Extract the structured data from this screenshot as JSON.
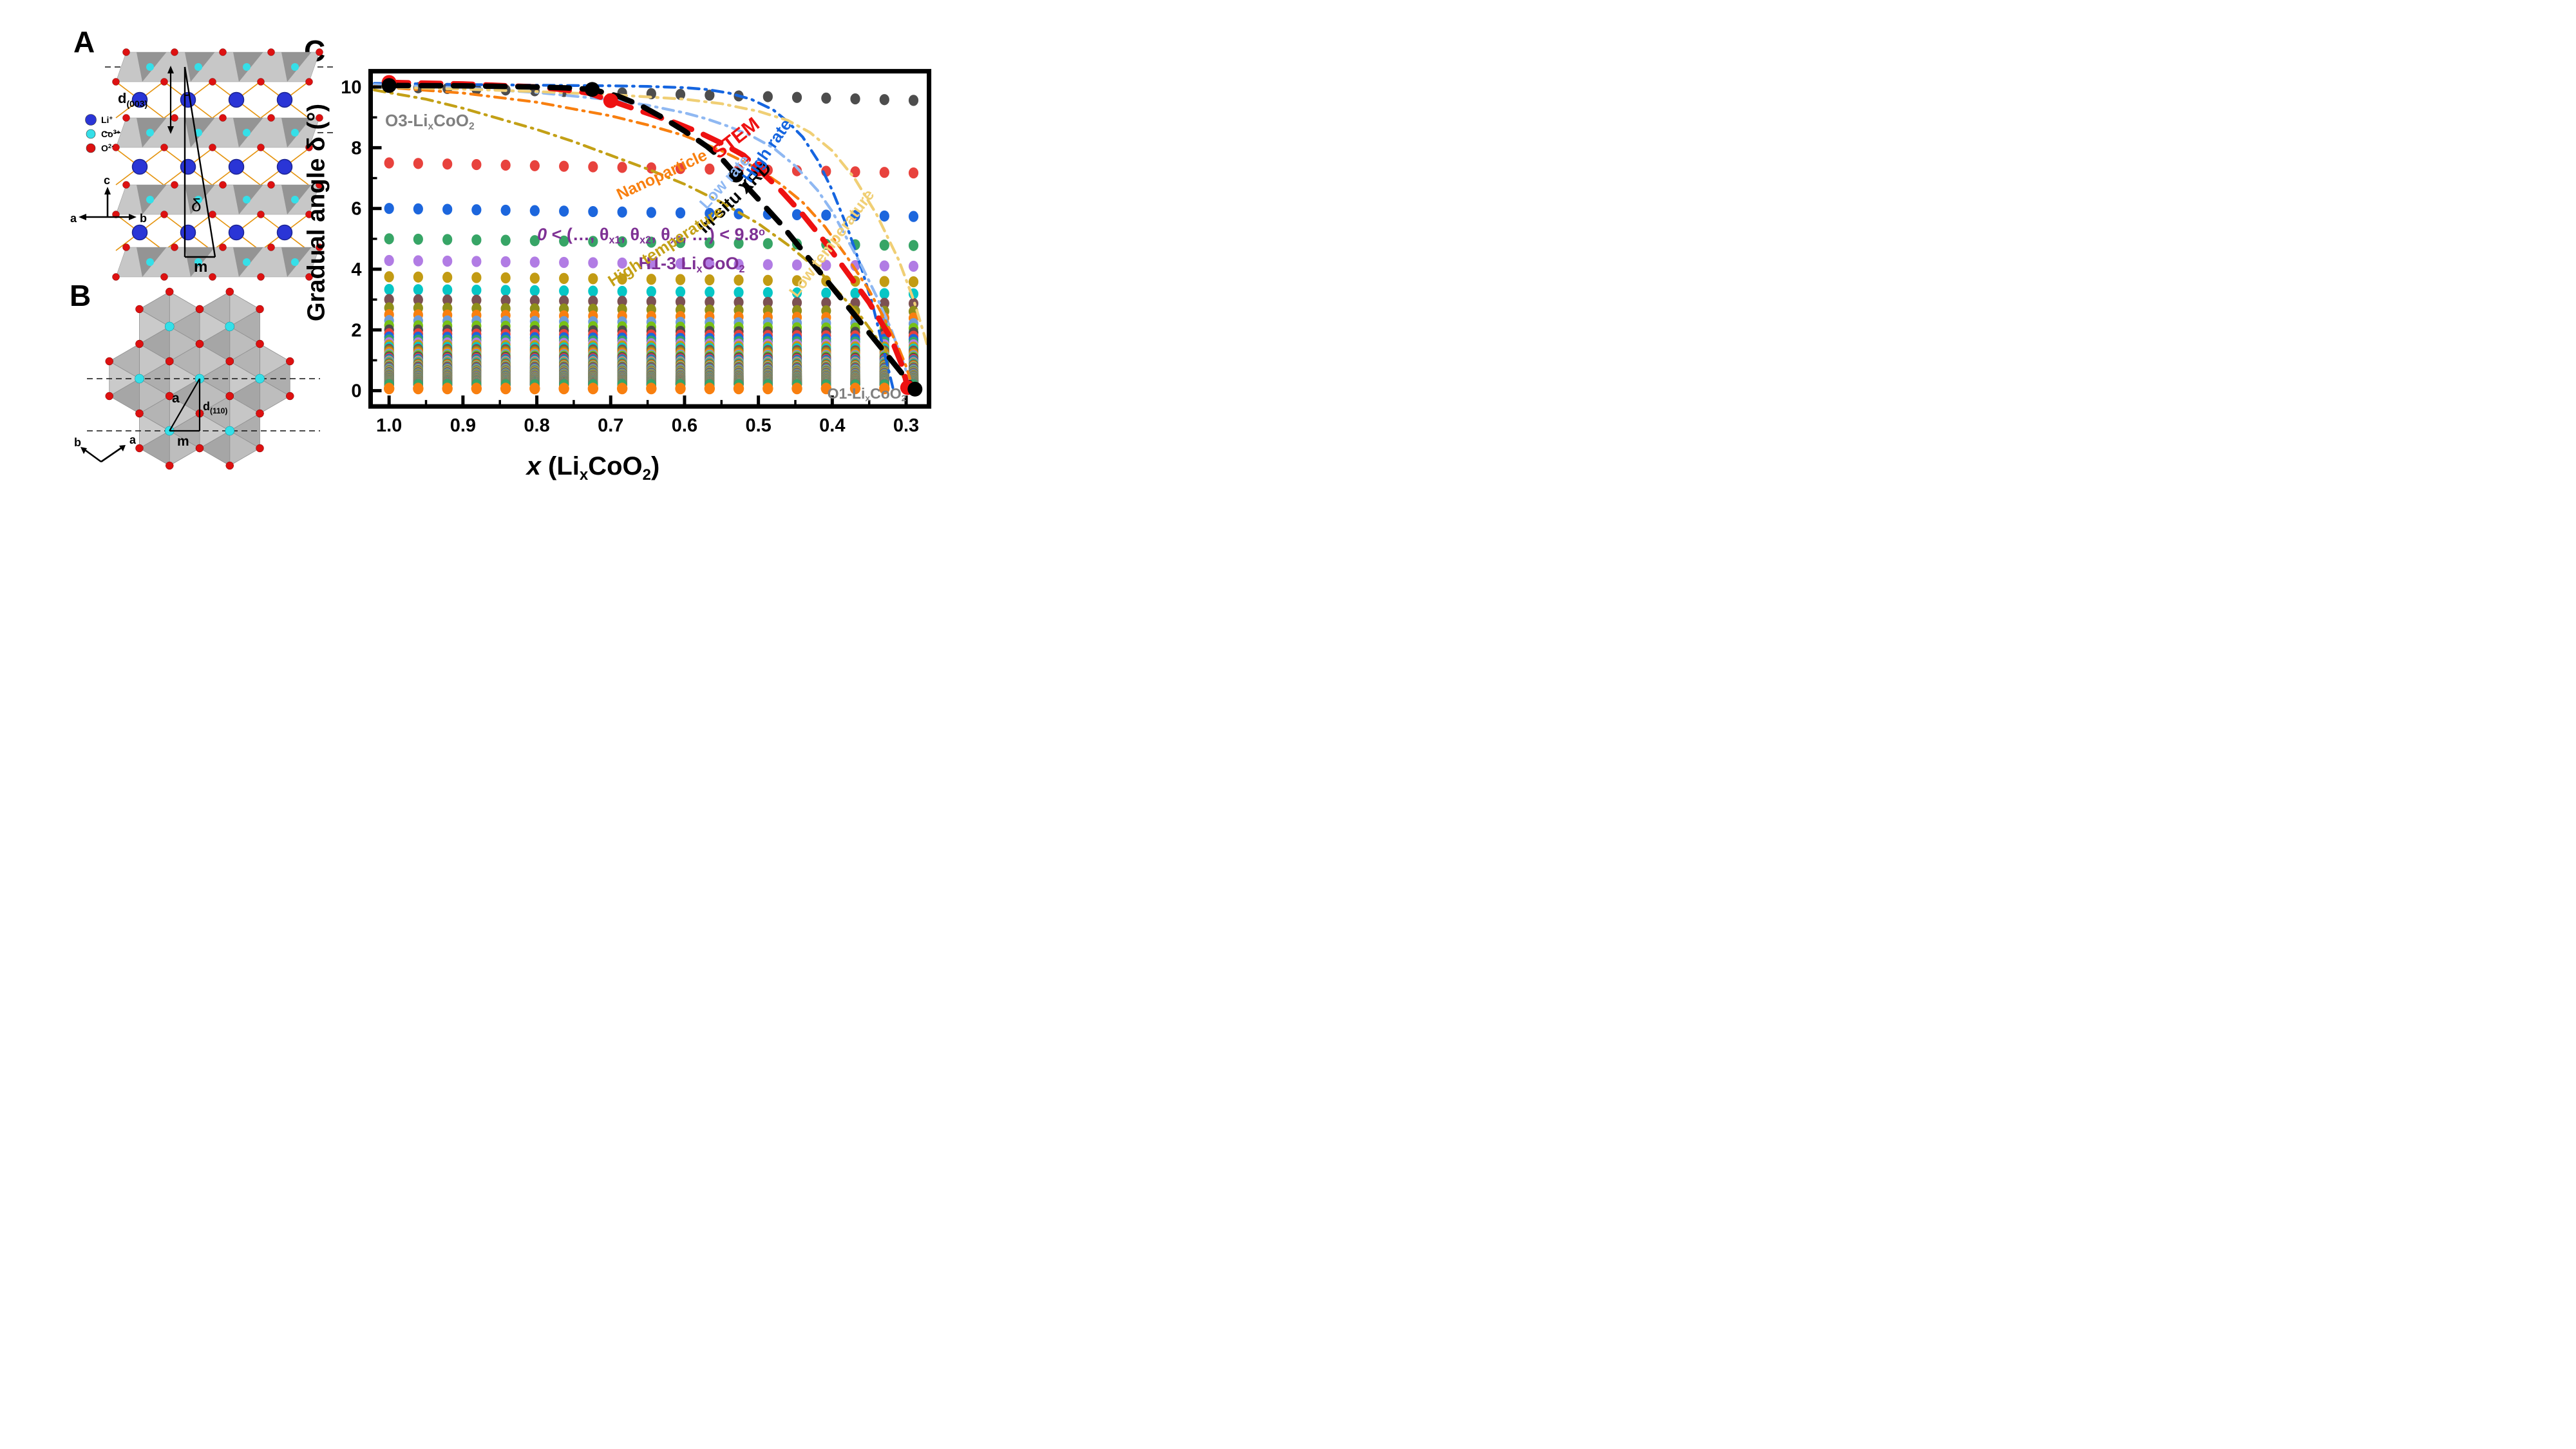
{
  "figure": {
    "panel_a_label": "A",
    "panel_b_label": "B",
    "panel_c_label": "C"
  },
  "panel_a": {
    "legend": [
      {
        "base": "Li",
        "sup": "+",
        "color": "#2a35d6"
      },
      {
        "base": "Co",
        "sup": "3+",
        "color": "#35dfe8"
      },
      {
        "base": "O",
        "sup": "2-",
        "color": "#dd1111"
      }
    ],
    "labels": {
      "d_base": "d",
      "d_sub": "(003)",
      "delta": "δ",
      "m": "m",
      "axis_c": "c",
      "axis_a": "a",
      "axis_b": "b"
    },
    "colors": {
      "li": "#2a35d6",
      "li_edge": "#1b2390",
      "co": "#35dfe8",
      "o": "#dd1111",
      "o_edge": "#7a0a0a",
      "bond": "#e5940f",
      "slab_light": "#c7c7c7",
      "slab_dark": "#8f8f8f",
      "slab_edge": "#9e9e9e"
    }
  },
  "panel_b": {
    "labels": {
      "a_tri": "a",
      "d_base": "d",
      "d_sub": "(110)",
      "m": "m",
      "axis_b": "b",
      "axis_a": "a"
    },
    "colors": {
      "co": "#35dfe8",
      "o": "#dd1111",
      "hex_fills": [
        "#c6c6c6",
        "#aeaeae",
        "#bdbdbd",
        "#a6a6a6",
        "#cacaca",
        "#b4b4b4"
      ],
      "hex_edge": "#909090"
    }
  },
  "chart_data": {
    "type": "scatter",
    "title": "",
    "ylabel": "Gradual angle δ (°)",
    "xlabel_rich": [
      {
        "t": "x",
        "i": 1
      },
      {
        "t": " ("
      },
      {
        "t": "Li"
      },
      {
        "t": "x",
        "sub": 1
      },
      {
        "t": "CoO"
      },
      {
        "t": "2",
        "sub": 1
      },
      {
        "t": ")"
      }
    ],
    "x_axis": {
      "min": 1.025,
      "max": 0.269,
      "reversed": true,
      "major_ticks": [
        1.0,
        0.9,
        0.8,
        0.7,
        0.6,
        0.5,
        0.4,
        0.3
      ],
      "tick_labels": [
        "1.0",
        "0.9",
        "0.8",
        "0.7",
        "0.6",
        "0.5",
        "0.4",
        "0.3"
      ],
      "minor_ticks": [
        0.95,
        0.85,
        0.75,
        0.65,
        0.55,
        0.45,
        0.35
      ]
    },
    "y_axis": {
      "min": -0.52,
      "max": 10.52,
      "major_ticks": [
        0,
        2,
        4,
        6,
        8,
        10
      ],
      "tick_labels": [
        "0",
        "2",
        "4",
        "6",
        "8",
        "10"
      ],
      "minor_ticks": [
        1,
        3,
        5,
        7,
        9
      ]
    },
    "grid": false,
    "dot_grid": {
      "comment": "columns of stacked possible gradual angles; delta_n = 30/n deg (n=3,4,5...), values shrink slightly as x decreases",
      "x_columns": [
        1.0,
        0.9606,
        0.9211,
        0.8817,
        0.8422,
        0.8028,
        0.7633,
        0.7239,
        0.6844,
        0.645,
        0.6056,
        0.5661,
        0.5267,
        0.4872,
        0.4478,
        0.4083,
        0.3689,
        0.3294,
        0.29
      ],
      "numerator": 30,
      "n_start": 3,
      "n_end": 150,
      "x_decline_factor": 0.062,
      "row_values_at_x1": [
        10,
        7.5,
        6,
        5,
        4.29,
        3.75,
        3.33,
        3.0,
        2.73,
        2.5,
        2.31,
        2.14,
        2.0
      ],
      "color_cycle": [
        "#4d4d4d",
        "#e8423d",
        "#1c66dd",
        "#37a566",
        "#b17ce4",
        "#c29b13",
        "#06c6c6",
        "#7c5153",
        "#8f8f1a",
        "#f87f0f",
        "#6e9cd6",
        "#77c116"
      ],
      "bottom_dot": {
        "delta": 0.07,
        "color": "#f87f0f"
      }
    },
    "series": [
      {
        "name": "STEM",
        "color": "#ee1111",
        "points": [
          [
            1.0,
            10.15
          ],
          [
            0.9,
            10.1
          ],
          [
            0.8,
            10.0
          ],
          [
            0.76,
            9.9
          ],
          [
            0.73,
            9.8
          ],
          [
            0.7,
            9.55
          ],
          [
            0.67,
            9.3
          ],
          [
            0.64,
            9.05
          ],
          [
            0.61,
            8.8
          ],
          [
            0.58,
            8.5
          ],
          [
            0.55,
            8.15
          ],
          [
            0.52,
            7.75
          ],
          [
            0.5,
            7.3
          ],
          [
            0.47,
            6.6
          ],
          [
            0.44,
            5.8
          ],
          [
            0.41,
            4.9
          ],
          [
            0.38,
            3.9
          ],
          [
            0.35,
            2.9
          ],
          [
            0.32,
            1.7
          ],
          [
            0.305,
            0.8
          ],
          [
            0.298,
            0.1
          ]
        ],
        "markers": [
          [
            1.0,
            10.15
          ],
          [
            0.7,
            9.55
          ],
          [
            0.5,
            7.3
          ],
          [
            0.298,
            0.1
          ]
        ]
      },
      {
        "name": "In-situ XRD",
        "color": "#000000",
        "points": [
          [
            1.0,
            10.05
          ],
          [
            0.9,
            10.04
          ],
          [
            0.8,
            10.0
          ],
          [
            0.76,
            9.97
          ],
          [
            0.725,
            9.92
          ],
          [
            0.69,
            9.7
          ],
          [
            0.66,
            9.4
          ],
          [
            0.63,
            9.0
          ],
          [
            0.6,
            8.55
          ],
          [
            0.57,
            8.05
          ],
          [
            0.55,
            7.65
          ],
          [
            0.53,
            7.1
          ],
          [
            0.5,
            6.3
          ],
          [
            0.47,
            5.5
          ],
          [
            0.44,
            4.6
          ],
          [
            0.41,
            3.7
          ],
          [
            0.38,
            2.8
          ],
          [
            0.35,
            1.9
          ],
          [
            0.32,
            1.0
          ],
          [
            0.3,
            0.4
          ],
          [
            0.288,
            0.05
          ]
        ],
        "markers": [
          [
            1.0,
            10.05
          ],
          [
            0.725,
            9.92
          ],
          [
            0.53,
            7.1
          ],
          [
            0.288,
            0.05
          ]
        ]
      }
    ],
    "guide_curves": [
      {
        "name": "High rate",
        "color": "#1565e0",
        "points": [
          [
            1.02,
            10.12
          ],
          [
            0.95,
            10.1
          ],
          [
            0.9,
            10.08
          ],
          [
            0.85,
            10.07
          ],
          [
            0.8,
            10.06
          ],
          [
            0.75,
            10.05
          ],
          [
            0.7,
            10.04
          ],
          [
            0.65,
            10.02
          ],
          [
            0.6,
            9.98
          ],
          [
            0.57,
            9.92
          ],
          [
            0.54,
            9.8
          ],
          [
            0.51,
            9.6
          ],
          [
            0.48,
            9.25
          ],
          [
            0.46,
            8.85
          ],
          [
            0.44,
            8.35
          ],
          [
            0.42,
            7.6
          ],
          [
            0.4,
            6.6
          ],
          [
            0.38,
            5.4
          ],
          [
            0.36,
            4.0
          ],
          [
            0.345,
            2.8
          ],
          [
            0.335,
            1.8
          ],
          [
            0.325,
            0.8
          ],
          [
            0.318,
            0.1
          ]
        ]
      },
      {
        "name": "Low rate",
        "color": "#8fb8f2",
        "points": [
          [
            1.02,
            10.08
          ],
          [
            0.9,
            9.97
          ],
          [
            0.8,
            9.82
          ],
          [
            0.7,
            9.58
          ],
          [
            0.65,
            9.4
          ],
          [
            0.6,
            9.15
          ],
          [
            0.57,
            8.95
          ],
          [
            0.54,
            8.7
          ],
          [
            0.51,
            8.4
          ],
          [
            0.48,
            8.0
          ],
          [
            0.45,
            7.4
          ],
          [
            0.42,
            6.6
          ],
          [
            0.4,
            5.9
          ],
          [
            0.38,
            5.0
          ],
          [
            0.36,
            4.1
          ],
          [
            0.34,
            3.1
          ],
          [
            0.32,
            2.0
          ],
          [
            0.305,
            1.0
          ],
          [
            0.295,
            0.3
          ]
        ]
      },
      {
        "name": "Nanoparticle",
        "color": "#f87f0f",
        "points": [
          [
            1.02,
            10.02
          ],
          [
            0.9,
            9.8
          ],
          [
            0.8,
            9.5
          ],
          [
            0.7,
            9.05
          ],
          [
            0.65,
            8.75
          ],
          [
            0.6,
            8.4
          ],
          [
            0.55,
            7.9
          ],
          [
            0.5,
            7.3
          ],
          [
            0.47,
            6.8
          ],
          [
            0.44,
            6.2
          ],
          [
            0.41,
            5.4
          ],
          [
            0.38,
            4.4
          ],
          [
            0.35,
            3.3
          ],
          [
            0.33,
            2.4
          ],
          [
            0.31,
            1.4
          ],
          [
            0.3,
            0.8
          ],
          [
            0.295,
            0.4
          ]
        ]
      },
      {
        "name": "High temperature",
        "color": "#c3a016",
        "points": [
          [
            1.02,
            9.9
          ],
          [
            0.95,
            9.6
          ],
          [
            0.9,
            9.3
          ],
          [
            0.85,
            8.95
          ],
          [
            0.8,
            8.6
          ],
          [
            0.75,
            8.2
          ],
          [
            0.7,
            7.75
          ],
          [
            0.65,
            7.3
          ],
          [
            0.6,
            6.8
          ],
          [
            0.55,
            6.2
          ],
          [
            0.5,
            5.5
          ],
          [
            0.46,
            4.8
          ],
          [
            0.42,
            4.0
          ],
          [
            0.39,
            3.2
          ],
          [
            0.36,
            2.4
          ],
          [
            0.33,
            1.4
          ],
          [
            0.31,
            0.7
          ],
          [
            0.3,
            0.3
          ]
        ]
      },
      {
        "name": "Low temperature",
        "color": "#f0cf75",
        "points": [
          [
            1.02,
            10.0
          ],
          [
            0.9,
            9.93
          ],
          [
            0.8,
            9.85
          ],
          [
            0.7,
            9.75
          ],
          [
            0.6,
            9.6
          ],
          [
            0.55,
            9.45
          ],
          [
            0.5,
            9.2
          ],
          [
            0.46,
            8.9
          ],
          [
            0.43,
            8.5
          ],
          [
            0.4,
            7.9
          ],
          [
            0.37,
            7.0
          ],
          [
            0.34,
            5.8
          ],
          [
            0.31,
            4.3
          ],
          [
            0.29,
            3.0
          ],
          [
            0.275,
            1.8
          ],
          [
            0.268,
            1.2
          ]
        ]
      }
    ],
    "annotations": {
      "o3_rich": [
        {
          "t": "O3-Li"
        },
        {
          "t": "x",
          "sub": 1
        },
        {
          "t": "CoO"
        },
        {
          "t": "2",
          "sub": 1
        }
      ],
      "o1_rich": [
        {
          "t": "O1-Li"
        },
        {
          "t": "x",
          "sub": 1
        },
        {
          "t": "CoO"
        },
        {
          "t": "2",
          "sub": 1
        }
      ],
      "h13_rich": [
        {
          "t": "H1-3 Li"
        },
        {
          "t": "x",
          "sub": 1
        },
        {
          "t": "CoO"
        },
        {
          "t": "2",
          "sub": 1
        }
      ],
      "formula_rich": [
        {
          "t": "0",
          "i": 1
        },
        {
          "t": " < (…, θ"
        },
        {
          "t": "x1",
          "sub": 1
        },
        {
          "t": ", θ"
        },
        {
          "t": "x2",
          "sub": 1
        },
        {
          "t": ", θ"
        },
        {
          "t": "x3",
          "sub": 1
        },
        {
          "t": ", …) < 9.8"
        },
        {
          "t": "o",
          "sup": 1
        }
      ],
      "stem_label": "STEM",
      "insitu_label": "In-situ XRD",
      "high_rate_label": "High rate",
      "low_rate_label": "Low rate",
      "nanoparticle_label": "Nanoparticle",
      "high_temp_label": "High temperature",
      "low_temp_label": "Low temperature",
      "purple": "#7e3194",
      "gray": "#808080"
    }
  }
}
